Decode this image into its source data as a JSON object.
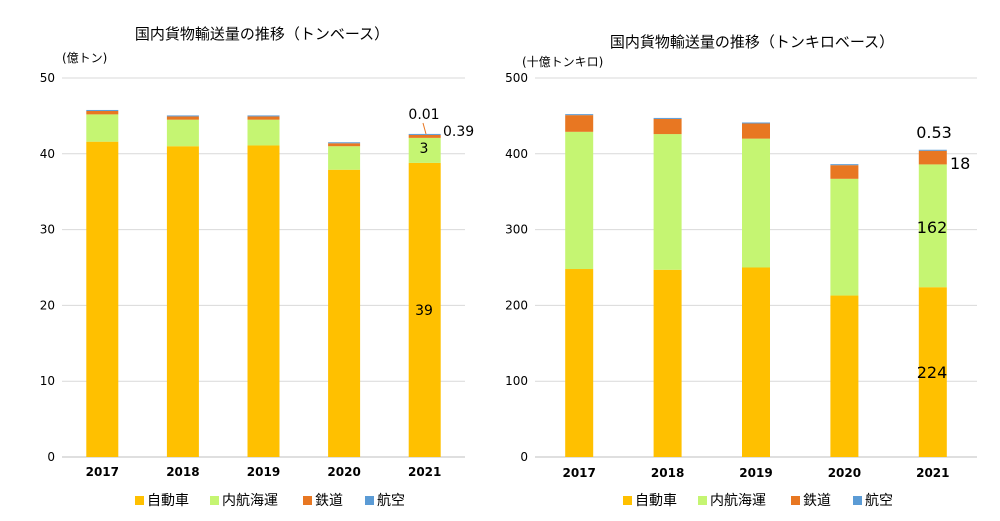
{
  "colors": {
    "road": "#FFC000",
    "coastal": "#C5F572",
    "rail": "#E87722",
    "air": "#5B9BD5",
    "grid": "#D9D9D9",
    "axis": "#BFBFBF"
  },
  "legend_names": [
    "自動車",
    "内航海運",
    "鉄道",
    "航空"
  ],
  "chart_data": [
    {
      "type": "bar",
      "stacked": true,
      "title": "国内貨物輸送量の推移（トンベース）",
      "unit_label": "(億トン)",
      "categories": [
        "2017",
        "2018",
        "2019",
        "2020",
        "2021"
      ],
      "ylim": [
        0,
        50
      ],
      "yticks": [
        "0",
        "10",
        "20",
        "30",
        "40",
        "50"
      ],
      "grid": true,
      "legend_position": "bottom",
      "series": [
        {
          "name": "自動車",
          "values": [
            41.6,
            41.0,
            41.1,
            37.9,
            38.8
          ]
        },
        {
          "name": "内航海運",
          "values": [
            3.6,
            3.5,
            3.4,
            3.1,
            3.3
          ]
        },
        {
          "name": "鉄道",
          "values": [
            0.45,
            0.43,
            0.43,
            0.39,
            0.39
          ]
        },
        {
          "name": "航空",
          "values": [
            0.01,
            0.01,
            0.01,
            0.01,
            0.01
          ]
        }
      ],
      "annotations": [
        "0.01",
        "0.39",
        "3",
        "39"
      ]
    },
    {
      "type": "bar",
      "stacked": true,
      "title": "国内貨物輸送量の推移（トンキロベース）",
      "unit_label": "(十億トンキロ)",
      "categories": [
        "2017",
        "2018",
        "2019",
        "2020",
        "2021"
      ],
      "ylim": [
        0,
        500
      ],
      "yticks": [
        "0",
        "100",
        "200",
        "300",
        "400",
        "500"
      ],
      "grid": true,
      "legend_position": "bottom",
      "series": [
        {
          "name": "自動車",
          "values": [
            248,
            247,
            250,
            213,
            224
          ]
        },
        {
          "name": "内航海運",
          "values": [
            181,
            179,
            170,
            154,
            162
          ]
        },
        {
          "name": "鉄道",
          "values": [
            22,
            20,
            20,
            18,
            18
          ]
        },
        {
          "name": "航空",
          "values": [
            1,
            1,
            1,
            0.5,
            0.53
          ]
        }
      ],
      "annotations": [
        "0.53",
        "18",
        "162",
        "224"
      ]
    }
  ]
}
